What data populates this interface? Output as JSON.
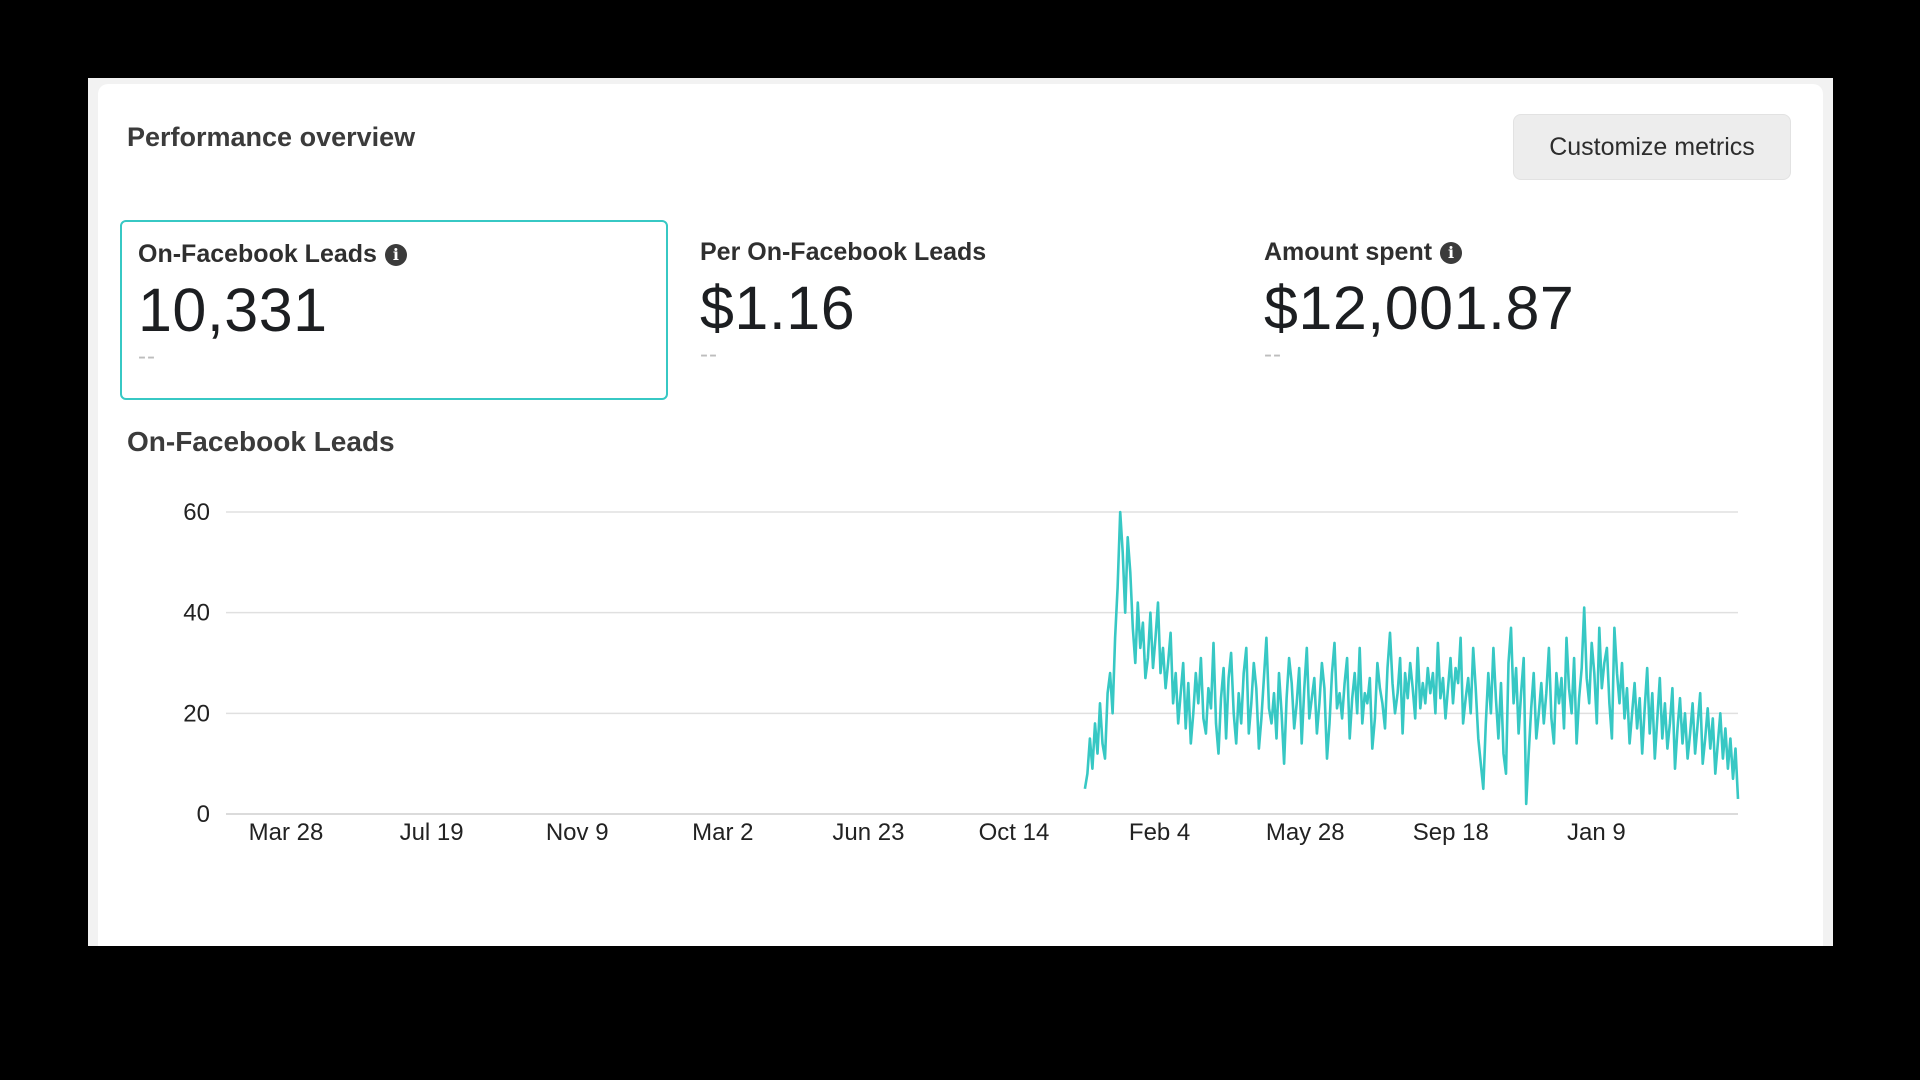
{
  "header": {
    "title": "Performance overview",
    "customize_label": "Customize metrics"
  },
  "metrics": [
    {
      "label": "On-Facebook Leads",
      "value": "10,331",
      "sub": "--",
      "info": true,
      "selected": true
    },
    {
      "label": "Per On-Facebook Leads",
      "value": "$1.16",
      "sub": "--",
      "info": false,
      "selected": false
    },
    {
      "label": "Amount spent",
      "value": "$12,001.87",
      "sub": "--",
      "info": true,
      "selected": false
    }
  ],
  "chart_title": "On-Facebook Leads",
  "colors": {
    "series": "#37c8c4",
    "grid": "#e0e0e0",
    "selected_border": "#37c8c4"
  },
  "chart_data": {
    "type": "line",
    "title": "On-Facebook Leads",
    "xlabel": "",
    "ylabel": "",
    "ylim": [
      0,
      60
    ],
    "yticks": [
      0,
      20,
      40,
      60
    ],
    "xticks": [
      "Mar 28",
      "Jul 19",
      "Nov 9",
      "Mar 2",
      "Jun 23",
      "Oct 14",
      "Feb 4",
      "May 28",
      "Sep 18",
      "Jan 9"
    ],
    "grid": true,
    "series": [
      {
        "name": "On-Facebook Leads",
        "start_tick": 5,
        "start_offset_days": 55,
        "values": [
          5,
          8,
          15,
          9,
          18,
          12,
          22,
          14,
          11,
          24,
          28,
          20,
          35,
          45,
          60,
          52,
          40,
          55,
          48,
          37,
          30,
          42,
          33,
          38,
          27,
          31,
          40,
          29,
          35,
          42,
          28,
          33,
          25,
          30,
          36,
          22,
          28,
          18,
          24,
          30,
          17,
          26,
          14,
          20,
          28,
          22,
          31,
          19,
          16,
          25,
          21,
          34,
          18,
          12,
          23,
          29,
          15,
          27,
          32,
          20,
          14,
          24,
          18,
          28,
          33,
          16,
          22,
          30,
          25,
          13,
          19,
          27,
          35,
          21,
          18,
          24,
          15,
          28,
          20,
          10,
          23,
          31,
          26,
          17,
          22,
          29,
          14,
          25,
          33,
          19,
          23,
          27,
          16,
          22,
          30,
          25,
          11,
          18,
          28,
          34,
          21,
          24,
          19,
          26,
          31,
          15,
          23,
          28,
          20,
          33,
          18,
          24,
          22,
          27,
          13,
          19,
          30,
          25,
          22,
          17,
          29,
          36,
          26,
          20,
          24,
          31,
          16,
          28,
          23,
          30,
          25,
          19,
          33,
          21,
          26,
          22,
          29,
          24,
          28,
          20,
          34,
          23,
          27,
          19,
          25,
          31,
          22,
          29,
          26,
          35,
          18,
          23,
          27,
          20,
          33,
          25,
          15,
          10,
          5,
          18,
          28,
          20,
          33,
          23,
          15,
          26,
          12,
          8,
          30,
          37,
          22,
          29,
          16,
          24,
          31,
          2,
          12,
          21,
          28,
          15,
          20,
          26,
          18,
          24,
          33,
          19,
          14,
          28,
          22,
          27,
          17,
          35,
          25,
          20,
          31,
          14,
          23,
          29,
          41,
          27,
          22,
          34,
          28,
          18,
          37,
          25,
          30,
          33,
          22,
          15,
          37,
          28,
          22,
          30,
          19,
          25,
          14,
          20,
          26,
          17,
          23,
          12,
          21,
          29,
          16,
          24,
          11,
          19,
          27,
          15,
          22,
          13,
          18,
          25,
          9,
          17,
          23,
          14,
          20,
          11,
          16,
          22,
          12,
          18,
          24,
          10,
          15,
          21,
          13,
          19,
          8,
          14,
          20,
          11,
          17,
          9,
          15,
          7,
          13,
          3
        ]
      }
    ]
  }
}
